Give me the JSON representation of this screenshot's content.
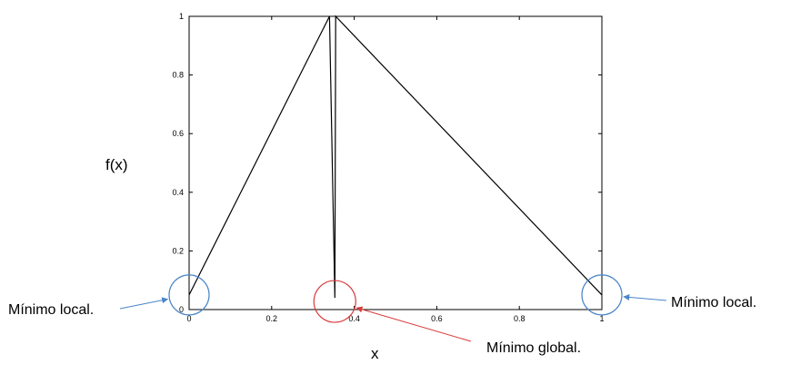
{
  "chart_data": {
    "type": "line",
    "title": "",
    "xlabel": "x",
    "ylabel": "f(x)",
    "xlim": [
      0,
      1
    ],
    "ylim": [
      0,
      1
    ],
    "x_ticks": [
      0,
      0.2,
      0.4,
      0.6,
      0.8,
      1
    ],
    "x_tick_labels": [
      "0",
      "0.2",
      "0.4",
      "0.6",
      "0.8",
      "1"
    ],
    "y_ticks": [
      0,
      0.2,
      0.4,
      0.6,
      0.8,
      1
    ],
    "y_tick_labels": [
      "0",
      "0.2",
      "0.4",
      "0.6",
      "0.8",
      "1"
    ],
    "grid": false,
    "legend": "none",
    "line_color": "#000000",
    "series": [
      {
        "x": [
          0,
          0.34,
          0.353,
          0.355,
          1
        ],
        "y": [
          0.05,
          1.0,
          0.04,
          1.0,
          0.05
        ]
      }
    ],
    "annotations": [
      {
        "text": "Mínimo local.",
        "x": 0,
        "y": 0.05,
        "color": "#4a86c8"
      },
      {
        "text": "Mínimo global.",
        "x": 0.353,
        "y": 0.04,
        "color": "#d93a3a"
      },
      {
        "text": "Mínimo local.",
        "x": 1,
        "y": 0.05,
        "color": "#4a86c8"
      }
    ]
  }
}
